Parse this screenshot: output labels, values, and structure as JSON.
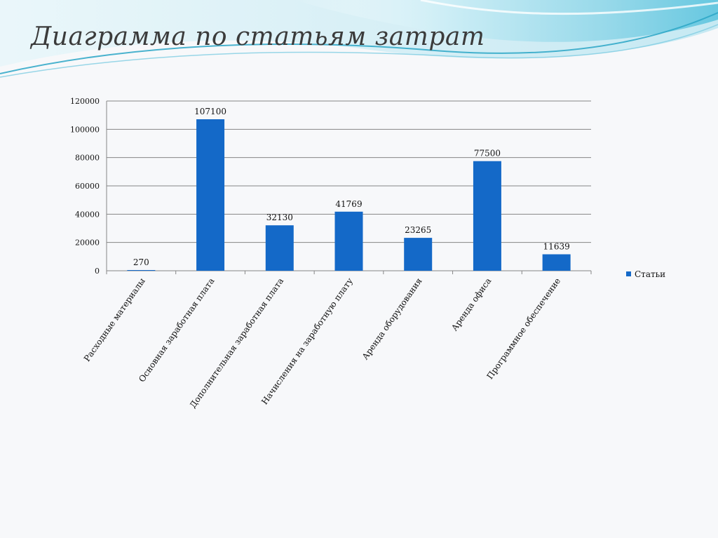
{
  "slide": {
    "title": "Диаграмма по статьям затрат"
  },
  "colors": {
    "bar": "#1469c8",
    "axis": "#868686",
    "grid": "#868686",
    "text": "#111111",
    "wave_light": "#bfe7f1",
    "wave_mid": "#7fcde2",
    "wave_dark": "#2aa6c5"
  },
  "chart_data": {
    "type": "bar",
    "title": "",
    "xlabel": "",
    "ylabel": "",
    "categories": [
      "Расходные материалы",
      "Основная заработная плата",
      "Дополнительная заработная плата",
      "Начисления на заработную плату",
      "Аренда оборудования",
      "Аренда офиса",
      "Программное обеспечение"
    ],
    "series": [
      {
        "name": "Статьи",
        "values": [
          270,
          107100,
          32130,
          41769,
          23265,
          77500,
          11639
        ]
      }
    ],
    "ylim": [
      0,
      120000
    ],
    "yticks": [
      "0",
      "20000",
      "40000",
      "60000",
      "80000",
      "100000",
      "120000"
    ],
    "grid": true,
    "legend": "right"
  }
}
